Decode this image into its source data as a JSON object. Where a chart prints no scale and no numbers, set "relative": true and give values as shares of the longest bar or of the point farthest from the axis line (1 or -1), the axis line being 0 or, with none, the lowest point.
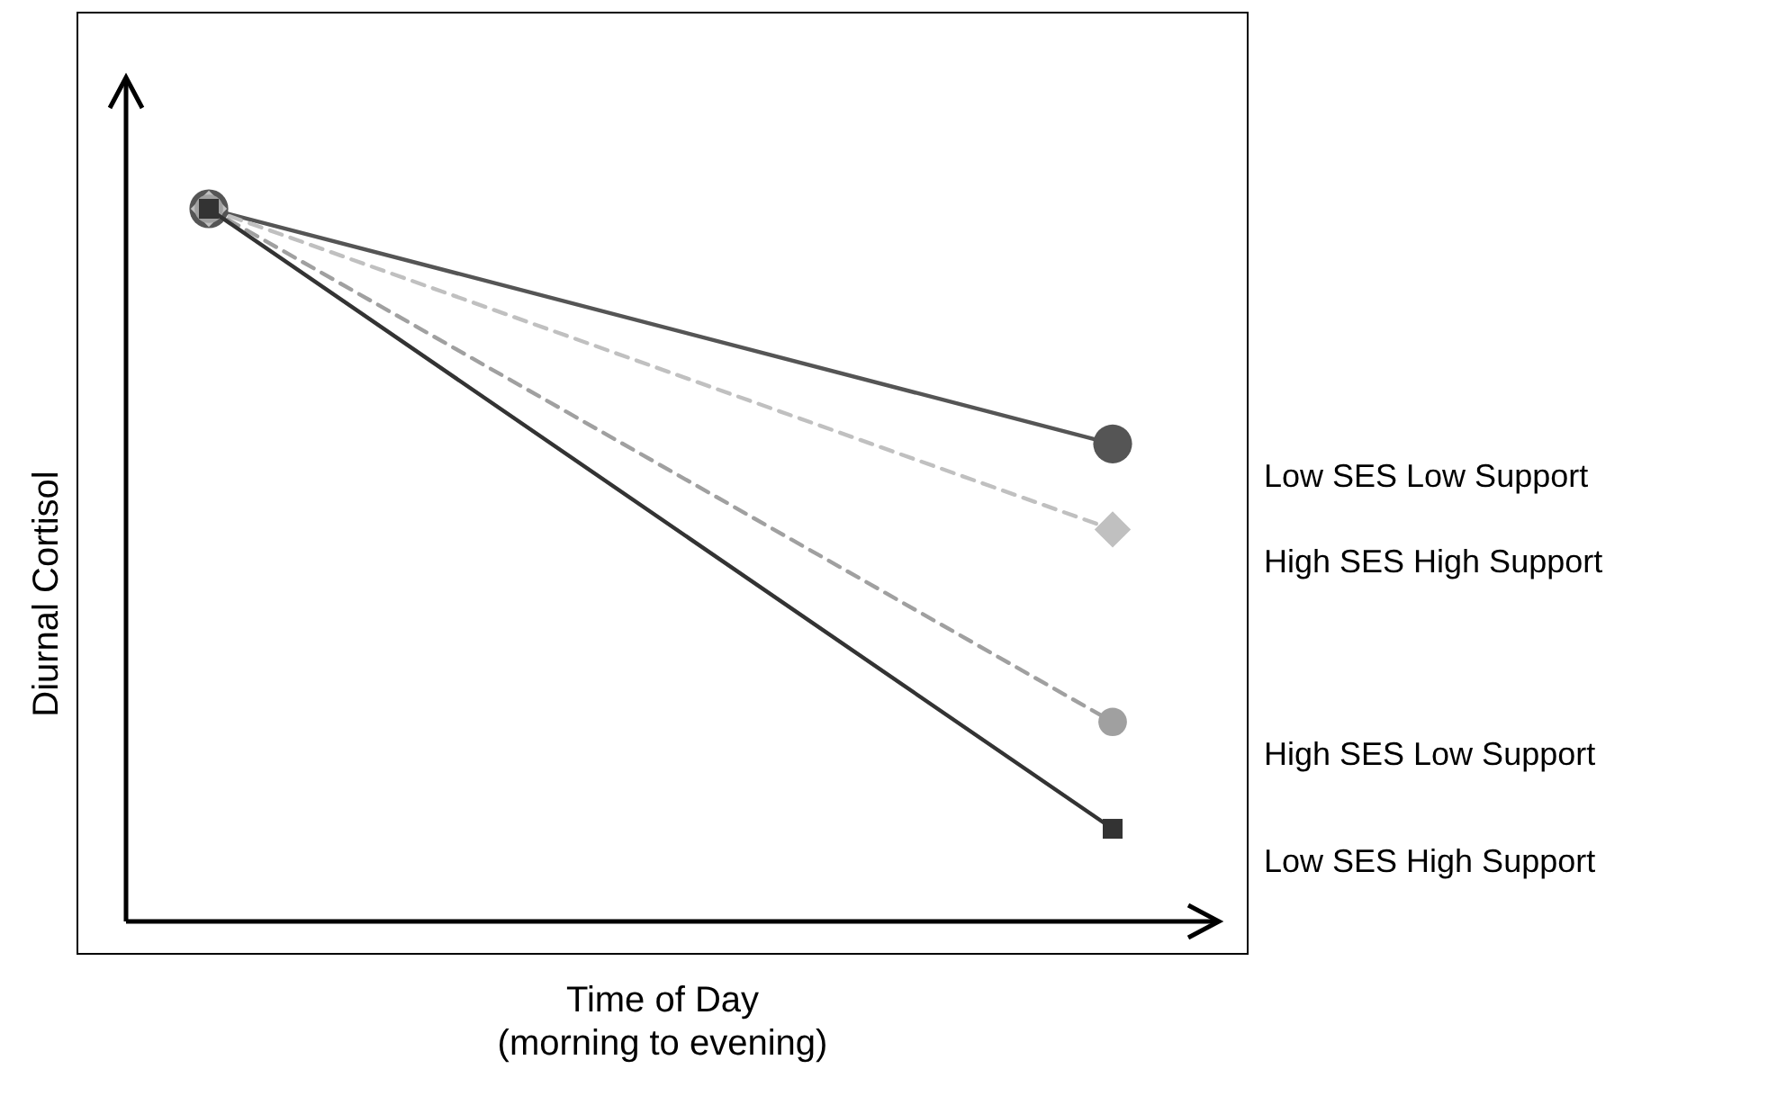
{
  "chart_data": {
    "type": "line",
    "relative": true,
    "xlabel": "Time of Day\n(morning to evening)",
    "ylabel": "Diurnal Cortisol",
    "categories": [
      null,
      null
    ],
    "series": [
      {
        "name": "Low SES Low Support",
        "color": "#555555",
        "values": [
          1,
          0.67
        ],
        "marker": "circle",
        "line_style": "solid"
      },
      {
        "name": "High SES High Support",
        "color": "#c0c0c0",
        "values": [
          1,
          0.55
        ],
        "marker": "diamond",
        "line_style": "dashed"
      },
      {
        "name": "High SES Low Support",
        "color": "#a0a0a0",
        "values": [
          1,
          0.28
        ],
        "marker": "circle",
        "line_style": "dashed"
      },
      {
        "name": "Low SES High Support",
        "color": "#333333",
        "values": [
          1,
          0.13
        ],
        "marker": "square",
        "line_style": "solid"
      }
    ]
  }
}
